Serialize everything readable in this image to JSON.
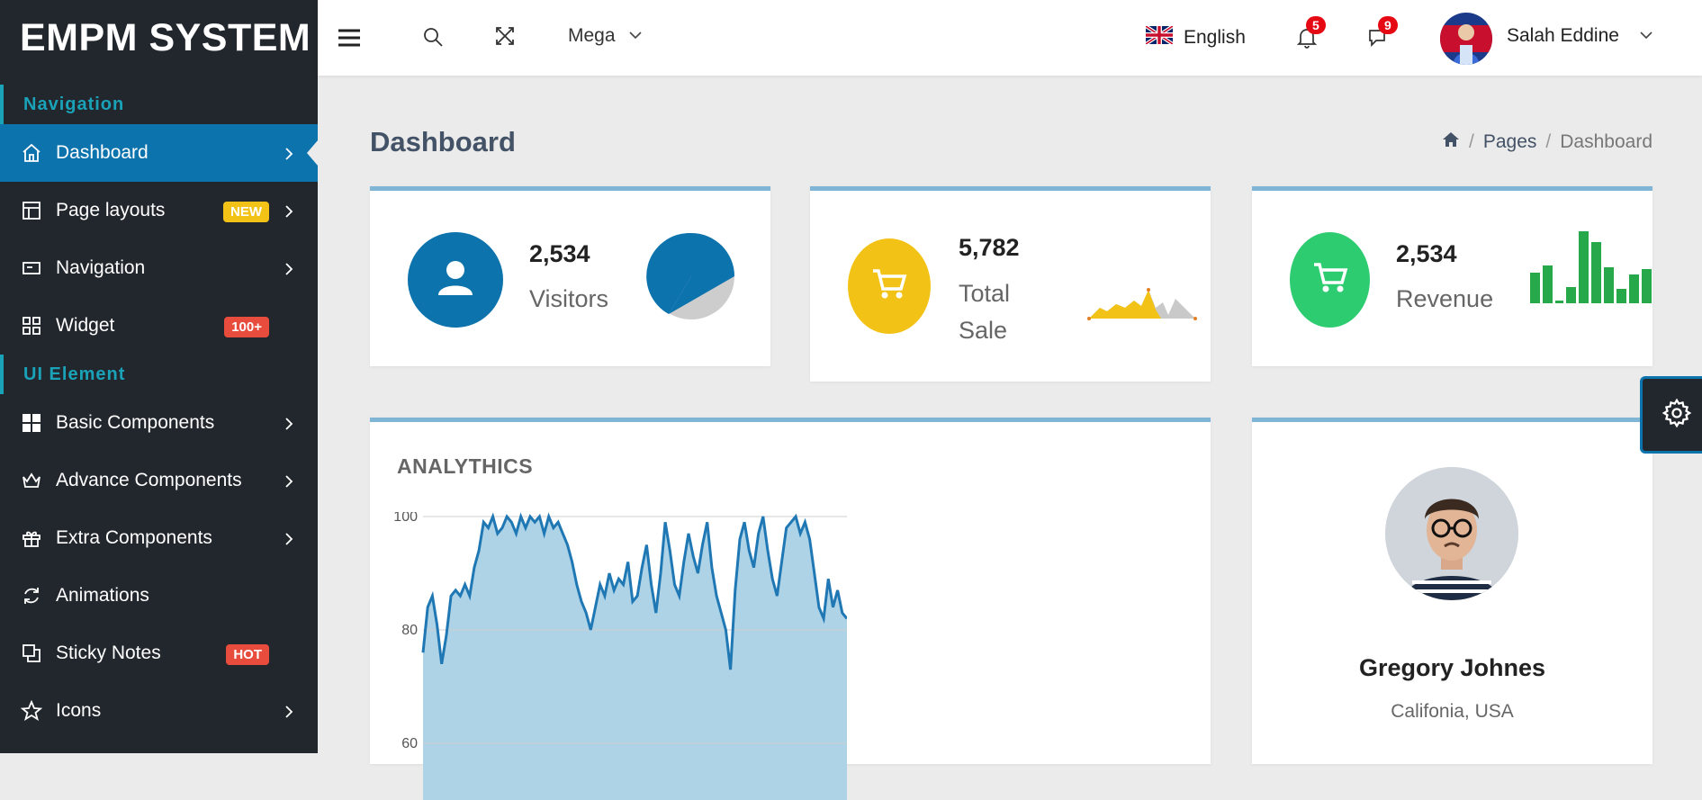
{
  "brand": "EMPM SYSTEM",
  "sidebar": {
    "sections": [
      "Navigation",
      "UI Element"
    ],
    "items": [
      {
        "label": "Dashboard",
        "icon": "home-icon",
        "chevron": true,
        "active": true
      },
      {
        "label": "Page layouts",
        "icon": "layout-icon",
        "chevron": true,
        "badge": "NEW"
      },
      {
        "label": "Navigation",
        "icon": "nav-icon",
        "chevron": true
      },
      {
        "label": "Widget",
        "icon": "grid-icon",
        "badge": "100+"
      },
      {
        "label": "Basic Components",
        "icon": "blocks-icon",
        "chevron": true
      },
      {
        "label": "Advance Components",
        "icon": "crown-icon",
        "chevron": true
      },
      {
        "label": "Extra Components",
        "icon": "gift-icon",
        "chevron": true
      },
      {
        "label": "Animations",
        "icon": "refresh-icon"
      },
      {
        "label": "Sticky Notes",
        "icon": "copy-icon",
        "badge": "HOT"
      },
      {
        "label": "Icons",
        "icon": "star-icon",
        "chevron": true
      }
    ]
  },
  "header": {
    "mega_label": "Mega",
    "language": "English",
    "notifications_count": "5",
    "messages_count": "9",
    "user_name": "Salah Eddine"
  },
  "page": {
    "title": "Dashboard",
    "breadcrumb": [
      "Pages",
      "Dashboard"
    ]
  },
  "stats": [
    {
      "value": "2,534",
      "label": "Visitors",
      "color": "#0d73ad",
      "icon": "user-icon"
    },
    {
      "value": "5,782",
      "label_line1": "Total",
      "label_line2": "Sale",
      "color": "#f2c316",
      "icon": "cart-icon"
    },
    {
      "value": "2,534",
      "label": "Revenue",
      "color": "#2ecc71",
      "icon": "cart-icon"
    }
  ],
  "analytics": {
    "title": "ANALYTHICS"
  },
  "profile": {
    "name": "Gregory Johnes",
    "location": "Califonia, USA"
  },
  "chart_data": {
    "type": "area",
    "title": "ANALYTHICS",
    "xlabel": "",
    "ylabel": "",
    "ylim": [
      50,
      100
    ],
    "yticks": [
      100,
      80,
      60
    ],
    "grid": true,
    "series": [
      {
        "values": [
          76,
          84,
          86,
          81,
          74,
          79,
          86,
          87,
          86,
          88,
          86,
          91,
          94,
          99,
          98,
          100,
          97,
          98,
          100,
          99,
          97,
          100,
          98,
          100,
          99,
          100,
          97,
          100,
          98,
          99,
          97,
          95,
          92,
          88,
          85,
          83,
          80,
          84,
          88,
          86,
          90,
          87,
          89,
          88,
          92,
          85,
          86,
          91,
          95,
          88,
          83,
          90,
          99,
          94,
          88,
          86,
          92,
          97,
          93,
          90,
          95,
          99,
          91,
          86,
          83,
          80,
          73,
          87,
          96,
          99,
          94,
          91,
          97,
          100,
          94,
          89,
          86,
          92,
          98,
          99,
          100,
          97,
          99,
          96,
          90,
          84,
          82,
          89,
          84,
          87,
          83,
          82
        ]
      }
    ]
  }
}
